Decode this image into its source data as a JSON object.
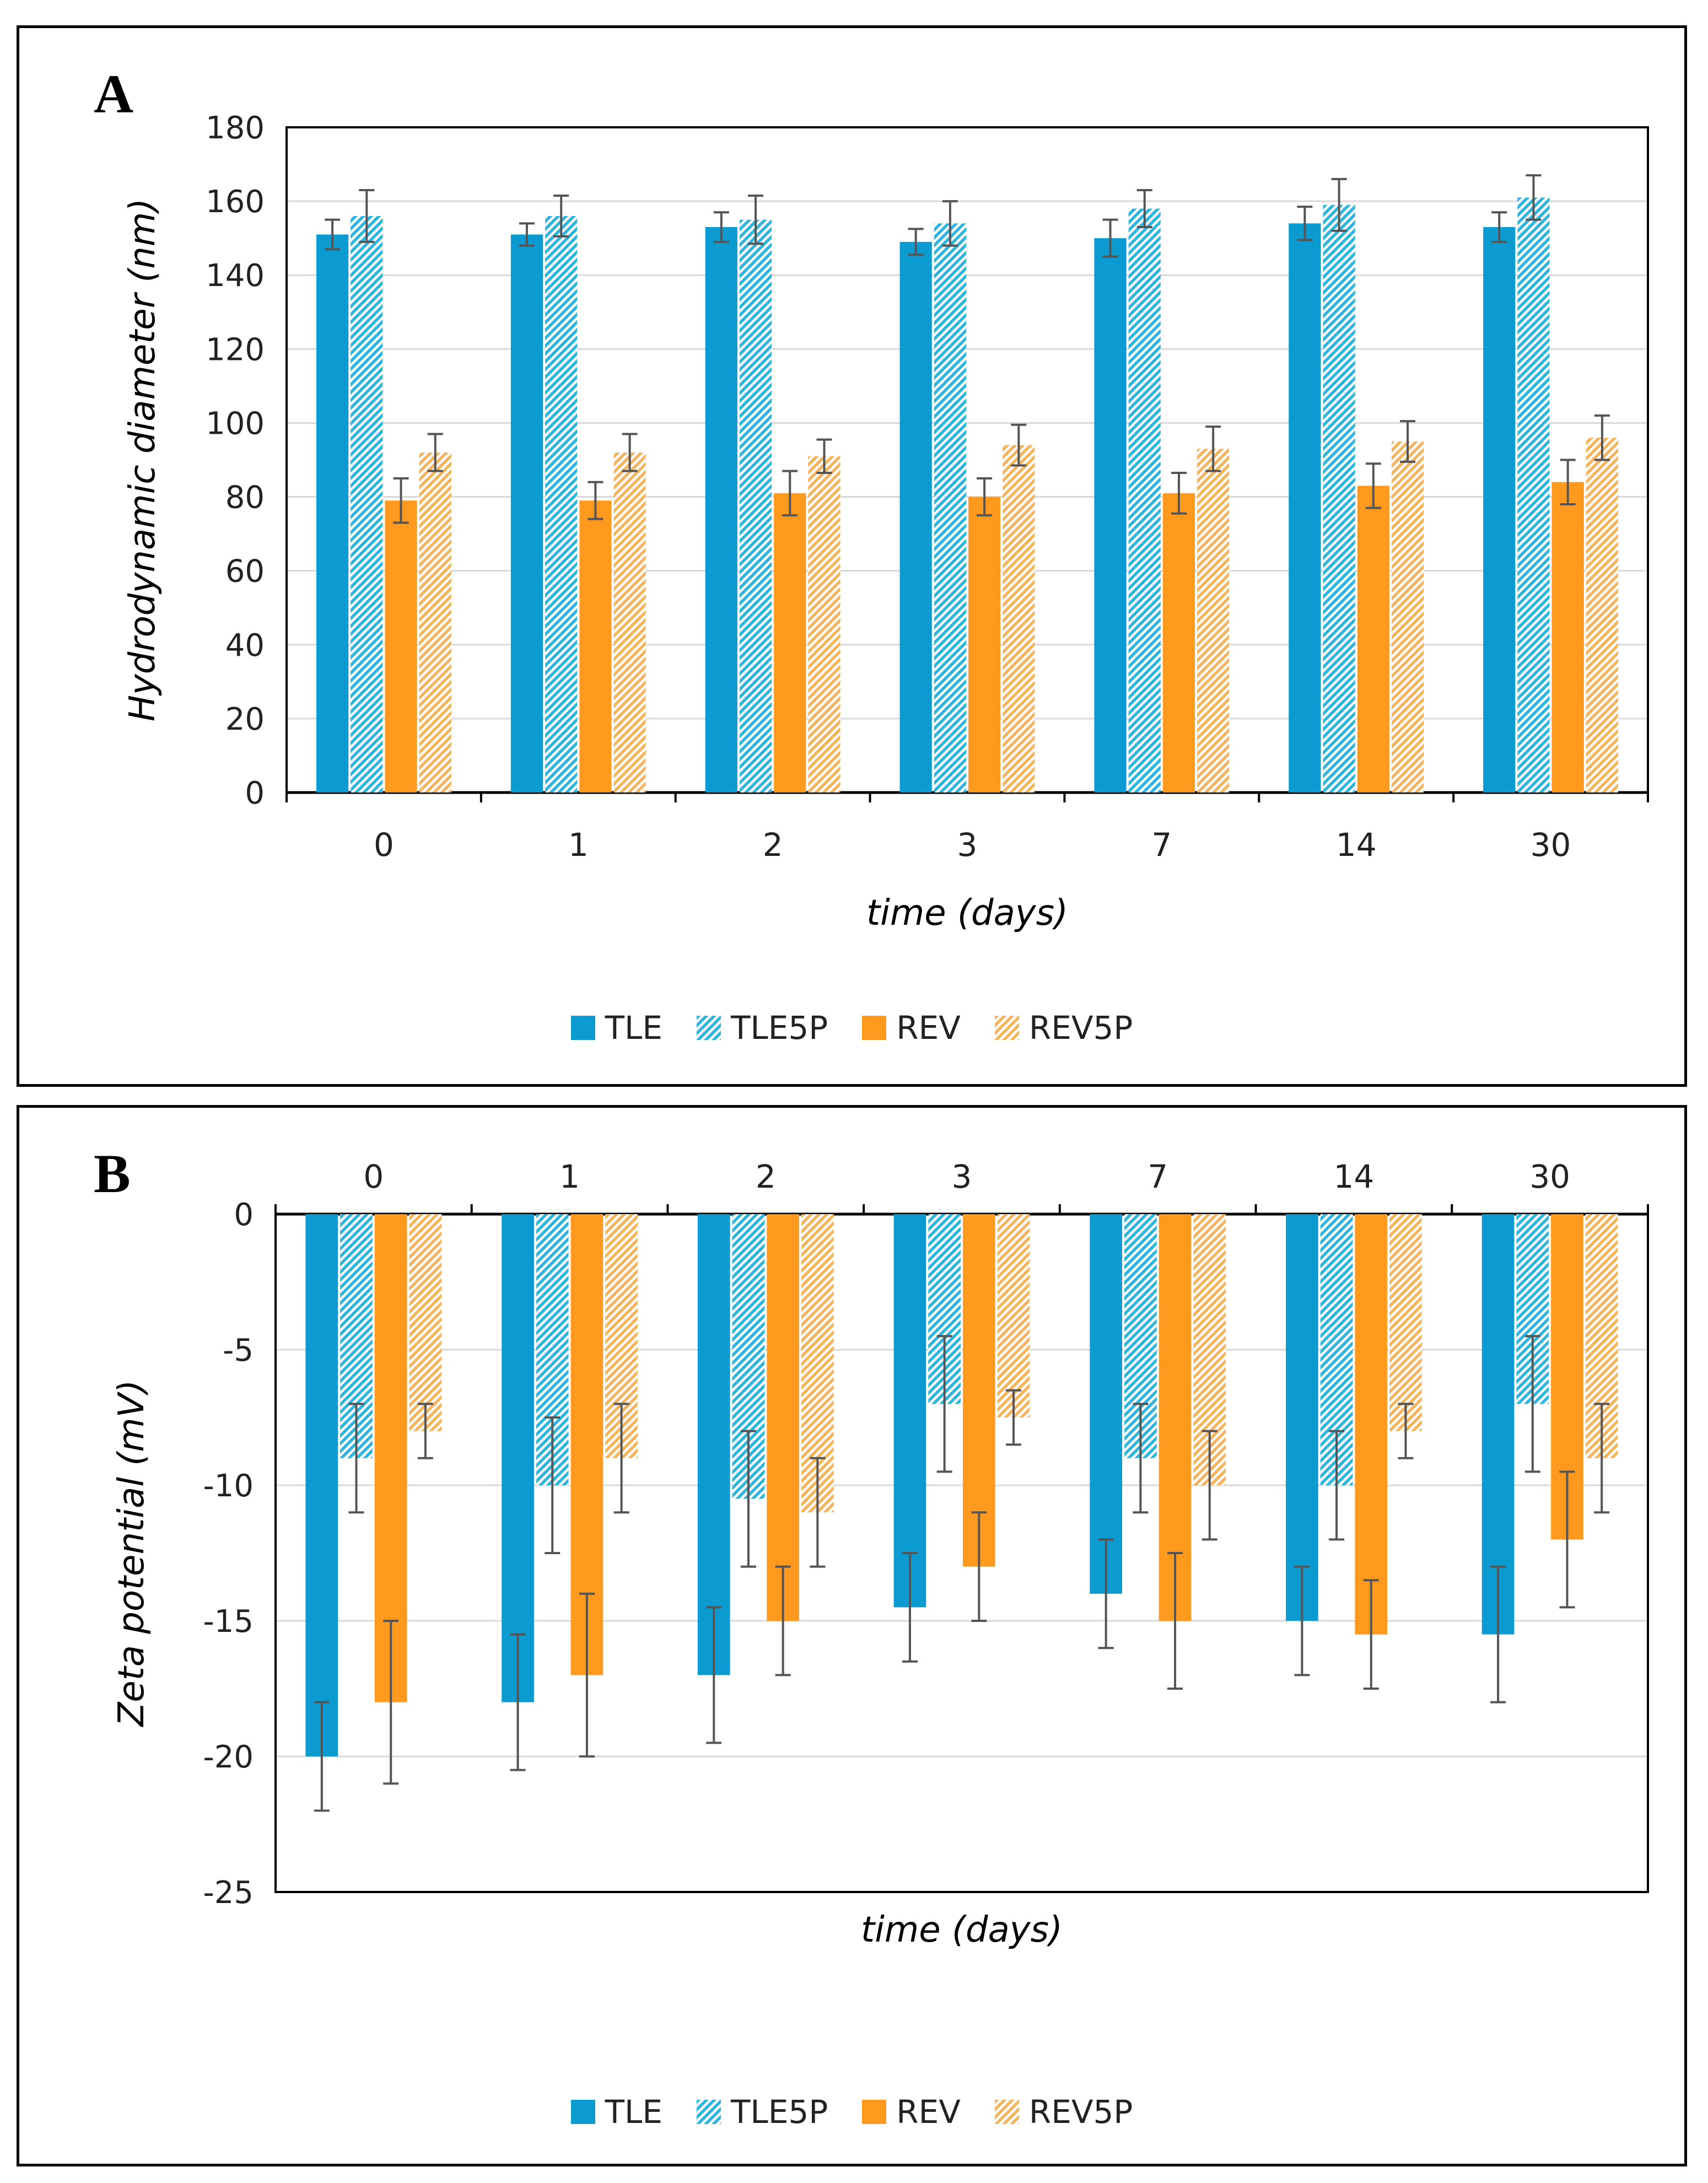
{
  "colors": {
    "TLE": "#0b9bd0",
    "TLE5P": "#2fb6e0",
    "REV": "#ff9a1f",
    "REV5P": "#f7b45e"
  },
  "series_names": [
    "TLE",
    "TLE5P",
    "REV",
    "REV5P"
  ],
  "panels": [
    {
      "label": "A",
      "chart_data": {
        "type": "bar",
        "title": "",
        "categories": [
          "0",
          "1",
          "2",
          "3",
          "7",
          "14",
          "30"
        ],
        "xlabel": "time (days)",
        "ylabel": "Hydrodynamic diameter (nm)",
        "ylim": [
          0,
          180
        ],
        "yticks": [
          "0",
          "20",
          "40",
          "60",
          "80",
          "100",
          "120",
          "140",
          "160",
          "180"
        ],
        "grid": true,
        "series": [
          {
            "name": "TLE",
            "values": [
              151,
              151,
              153,
              149,
              150,
              154,
              153
            ],
            "errors": [
              4,
              3,
              4,
              3.5,
              5,
              4.5,
              4
            ]
          },
          {
            "name": "TLE5P",
            "values": [
              156,
              156,
              155,
              154,
              158,
              159,
              161
            ],
            "errors": [
              7,
              5.5,
              6.5,
              6,
              5,
              7,
              6
            ]
          },
          {
            "name": "REV",
            "values": [
              79,
              79,
              81,
              80,
              81,
              83,
              84
            ],
            "errors": [
              6,
              5,
              6,
              5,
              5.5,
              6,
              6
            ]
          },
          {
            "name": "REV5P",
            "values": [
              92,
              92,
              91,
              94,
              93,
              95,
              96
            ],
            "errors": [
              5,
              5,
              4.5,
              5.5,
              6,
              5.5,
              6
            ]
          }
        ],
        "legend": "bottom-center",
        "category_axis": "bottom"
      }
    },
    {
      "label": "B",
      "chart_data": {
        "type": "bar",
        "title": "",
        "categories": [
          "0",
          "1",
          "2",
          "3",
          "7",
          "14",
          "30"
        ],
        "xlabel": "time (days)",
        "ylabel": "Zeta potential (mV)",
        "ylim": [
          -25,
          0
        ],
        "yticks": [
          "-25",
          "-20",
          "-15",
          "-10",
          "-5",
          "0"
        ],
        "grid": true,
        "series": [
          {
            "name": "TLE",
            "values": [
              -20,
              -18,
              -17,
              -14.5,
              -14,
              -15,
              -15.5
            ],
            "errors": [
              2,
              2.5,
              2.5,
              2,
              2,
              2,
              2.5
            ]
          },
          {
            "name": "TLE5P",
            "values": [
              -9,
              -10,
              -10.5,
              -7,
              -9,
              -10,
              -7
            ],
            "errors": [
              2,
              2.5,
              2.5,
              2.5,
              2,
              2,
              2.5
            ]
          },
          {
            "name": "REV",
            "values": [
              -18,
              -17,
              -15,
              -13,
              -15,
              -15.5,
              -12
            ],
            "errors": [
              3,
              3,
              2,
              2,
              2.5,
              2,
              2.5
            ]
          },
          {
            "name": "REV5P",
            "values": [
              -8,
              -9,
              -11,
              -7.5,
              -10,
              -8,
              -9
            ],
            "errors": [
              1,
              2,
              2,
              1,
              2,
              1,
              2
            ]
          }
        ],
        "legend": "bottom-center",
        "category_axis": "top"
      }
    }
  ]
}
